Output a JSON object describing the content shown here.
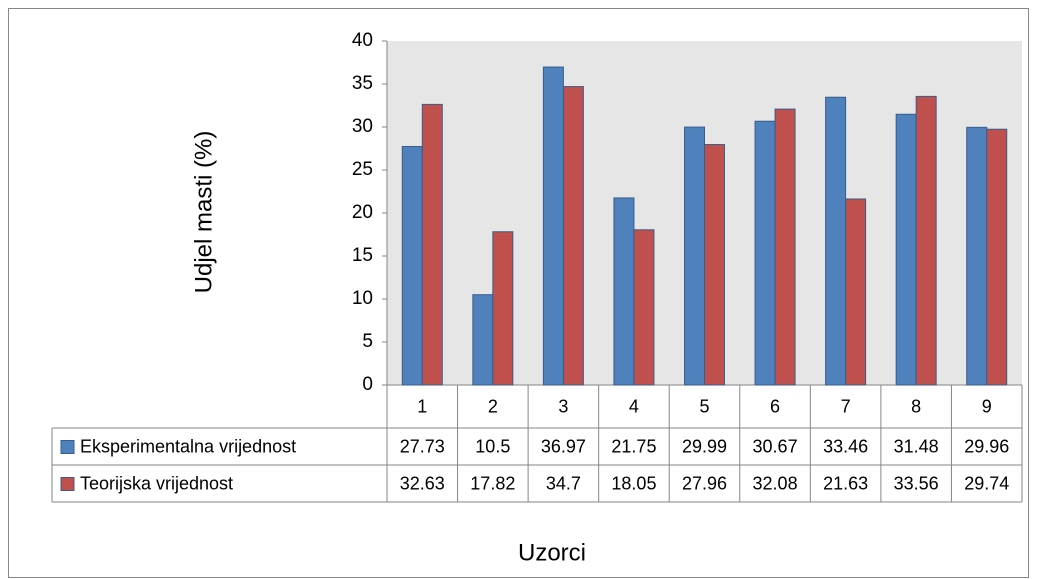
{
  "chart_data": {
    "type": "bar",
    "y_label": "Udjel masti (%)",
    "x_label": "Uzorci",
    "categories": [
      "1",
      "2",
      "3",
      "4",
      "5",
      "6",
      "7",
      "8",
      "9"
    ],
    "series": [
      {
        "name": "Eksperimentalna vrijednost",
        "color": "#4f81bd",
        "values": [
          27.73,
          10.5,
          36.97,
          21.75,
          29.99,
          30.67,
          33.46,
          31.48,
          29.96
        ]
      },
      {
        "name": "Teorijska vrijednost",
        "color": "#c0504d",
        "values": [
          32.63,
          17.82,
          34.7,
          18.05,
          27.96,
          32.08,
          21.63,
          33.56,
          29.74
        ]
      }
    ],
    "ylim": [
      0,
      40
    ],
    "yticks": [
      0,
      5,
      10,
      15,
      20,
      25,
      30,
      35,
      40
    ],
    "grid": false
  }
}
